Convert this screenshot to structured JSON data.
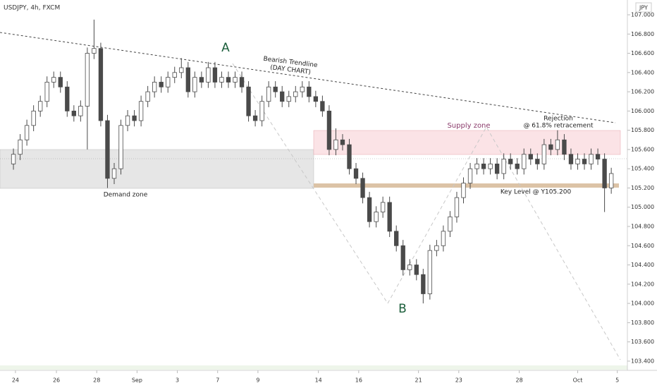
{
  "chart_data": {
    "type": "candlestick",
    "title": "USDJPY, 4h, FXCM",
    "currency": "JPY",
    "annotations": {
      "a": "A",
      "b": "B",
      "trend1": "Bearish Trendline",
      "trend2": "(DAY CHART)",
      "supply": "Supply zone",
      "rej1": "Rejection",
      "rej2": "@ 61.8% retracement",
      "demand": "Demand zone",
      "key": "Key Level @ Y105.200"
    },
    "up_color": "#ffffff",
    "down_color": "#4a4a4a",
    "outline_color": "#4a4a4a",
    "open": [
      105.45,
      105.55,
      105.7,
      105.85,
      106.0,
      106.1,
      106.3,
      106.35,
      106.25,
      106.0,
      105.95,
      106.05,
      106.6,
      106.65,
      105.9,
      105.3,
      105.4,
      105.85,
      105.95,
      105.9,
      106.1,
      106.2,
      106.3,
      106.25,
      106.35,
      106.4,
      106.45,
      106.2,
      106.35,
      106.3,
      106.45,
      106.3,
      106.35,
      106.3,
      106.35,
      106.25,
      105.95,
      105.9,
      106.1,
      106.25,
      106.2,
      106.1,
      106.15,
      106.2,
      106.25,
      106.15,
      106.1,
      106.0,
      105.6,
      105.7,
      105.65,
      105.4,
      105.3,
      105.1,
      104.85,
      104.95,
      105.05,
      104.75,
      104.6,
      104.35,
      104.4,
      104.3,
      104.1,
      104.55,
      104.6,
      104.75,
      104.9,
      105.1,
      105.25,
      105.4,
      105.45,
      105.4,
      105.45,
      105.35,
      105.5,
      105.45,
      105.4,
      105.55,
      105.5,
      105.45,
      105.65,
      105.6,
      105.7,
      105.55,
      105.45,
      105.5,
      105.45,
      105.55,
      105.5,
      105.2
    ],
    "high": [
      105.61,
      105.76,
      105.91,
      106.06,
      106.16,
      106.36,
      106.41,
      106.41,
      106.31,
      106.06,
      106.11,
      106.66,
      106.95,
      106.71,
      105.96,
      105.46,
      105.91,
      106.01,
      106.01,
      106.16,
      106.26,
      106.36,
      106.36,
      106.41,
      106.46,
      106.55,
      106.51,
      106.41,
      106.41,
      106.51,
      106.51,
      106.41,
      106.41,
      106.41,
      106.41,
      106.31,
      106.01,
      106.16,
      106.31,
      106.31,
      106.26,
      106.21,
      106.26,
      106.31,
      106.31,
      106.21,
      106.16,
      106.06,
      105.82,
      105.76,
      105.71,
      105.46,
      105.36,
      105.16,
      105.01,
      105.11,
      105.11,
      104.81,
      104.66,
      104.46,
      104.46,
      104.36,
      104.61,
      104.66,
      104.81,
      104.96,
      105.16,
      105.31,
      105.46,
      105.51,
      105.51,
      105.51,
      105.51,
      105.56,
      105.56,
      105.51,
      105.61,
      105.61,
      105.56,
      105.71,
      105.71,
      105.8,
      105.76,
      105.61,
      105.56,
      105.56,
      105.61,
      105.61,
      105.56,
      105.41
    ],
    "low": [
      105.39,
      105.49,
      105.64,
      105.79,
      105.94,
      106.04,
      106.24,
      106.19,
      105.94,
      105.89,
      105.89,
      105.6,
      106.54,
      105.84,
      105.2,
      105.24,
      105.34,
      105.79,
      105.84,
      105.84,
      106.04,
      106.14,
      106.19,
      106.19,
      106.29,
      106.34,
      106.14,
      106.14,
      106.24,
      106.24,
      106.24,
      106.24,
      106.24,
      106.24,
      106.19,
      105.89,
      105.84,
      105.84,
      106.04,
      106.14,
      106.04,
      106.04,
      106.09,
      106.14,
      106.09,
      106.04,
      105.94,
      105.54,
      105.54,
      105.59,
      105.34,
      105.24,
      105.04,
      104.79,
      104.79,
      104.89,
      104.69,
      104.54,
      104.29,
      104.29,
      104.24,
      104.0,
      104.04,
      104.49,
      104.54,
      104.69,
      104.84,
      105.04,
      105.19,
      105.34,
      105.34,
      105.34,
      105.29,
      105.29,
      105.39,
      105.34,
      105.34,
      105.44,
      105.39,
      105.39,
      105.54,
      105.54,
      105.49,
      105.39,
      105.39,
      105.39,
      105.39,
      105.44,
      104.95,
      105.14
    ],
    "close": [
      105.55,
      105.7,
      105.85,
      106.0,
      106.1,
      106.3,
      106.35,
      106.25,
      106.0,
      105.95,
      106.05,
      106.6,
      106.65,
      105.9,
      105.3,
      105.4,
      105.85,
      105.95,
      105.9,
      106.1,
      106.2,
      106.3,
      106.25,
      106.35,
      106.4,
      106.45,
      106.2,
      106.35,
      106.3,
      106.45,
      106.3,
      106.35,
      106.3,
      106.35,
      106.25,
      105.95,
      105.9,
      106.1,
      106.25,
      106.2,
      106.1,
      106.15,
      106.2,
      106.25,
      106.15,
      106.1,
      106.0,
      105.6,
      105.7,
      105.65,
      105.4,
      105.3,
      105.1,
      104.85,
      104.95,
      105.05,
      104.75,
      104.6,
      104.35,
      104.4,
      104.3,
      104.1,
      104.55,
      104.6,
      104.75,
      104.9,
      105.1,
      105.25,
      105.4,
      105.45,
      105.4,
      105.45,
      105.35,
      105.5,
      105.45,
      105.4,
      105.55,
      105.5,
      105.45,
      105.65,
      105.6,
      105.7,
      105.55,
      105.45,
      105.5,
      105.45,
      105.55,
      105.5,
      105.2,
      105.35
    ],
    "xlim": [
      -2,
      91.4
    ],
    "xticks": [
      {
        "value": 0.3,
        "label": "24"
      },
      {
        "value": 6.4,
        "label": "26"
      },
      {
        "value": 12.4,
        "label": "28"
      },
      {
        "value": 18.4,
        "label": "Sep"
      },
      {
        "value": 24.4,
        "label": "3"
      },
      {
        "value": 30.4,
        "label": "7"
      },
      {
        "value": 36.4,
        "label": "9"
      },
      {
        "value": 45.4,
        "label": "14"
      },
      {
        "value": 51.4,
        "label": "16"
      },
      {
        "value": 60.3,
        "label": "21"
      },
      {
        "value": 66.3,
        "label": "23"
      },
      {
        "value": 75.3,
        "label": "28"
      },
      {
        "value": 84,
        "label": "Oct"
      },
      {
        "value": 89.9,
        "label": "5"
      }
    ],
    "ylim": [
      103.304,
      107.154
    ],
    "yticks": [
      {
        "value": 107,
        "label": "107.000"
      },
      {
        "value": 106.8,
        "label": "106.800"
      },
      {
        "value": 106.6,
        "label": "106.600"
      },
      {
        "value": 106.4,
        "label": "106.400"
      },
      {
        "value": 106.2,
        "label": "106.200"
      },
      {
        "value": 106,
        "label": "106.000"
      },
      {
        "value": 105.8,
        "label": "105.800"
      },
      {
        "value": 105.6,
        "label": "105.600"
      },
      {
        "value": 105.4,
        "label": "105.400"
      },
      {
        "value": 105.2,
        "label": "105.200"
      },
      {
        "value": 105,
        "label": "105.000"
      },
      {
        "value": 104.8,
        "label": "104.800"
      },
      {
        "value": 104.6,
        "label": "104.600"
      },
      {
        "value": 104.4,
        "label": "104.400"
      },
      {
        "value": 104.2,
        "label": "104.200"
      },
      {
        "value": 104,
        "label": "104.000"
      },
      {
        "value": 103.8,
        "label": "103.800"
      },
      {
        "value": 103.6,
        "label": "103.600"
      },
      {
        "value": 103.4,
        "label": "103.400"
      }
    ]
  }
}
